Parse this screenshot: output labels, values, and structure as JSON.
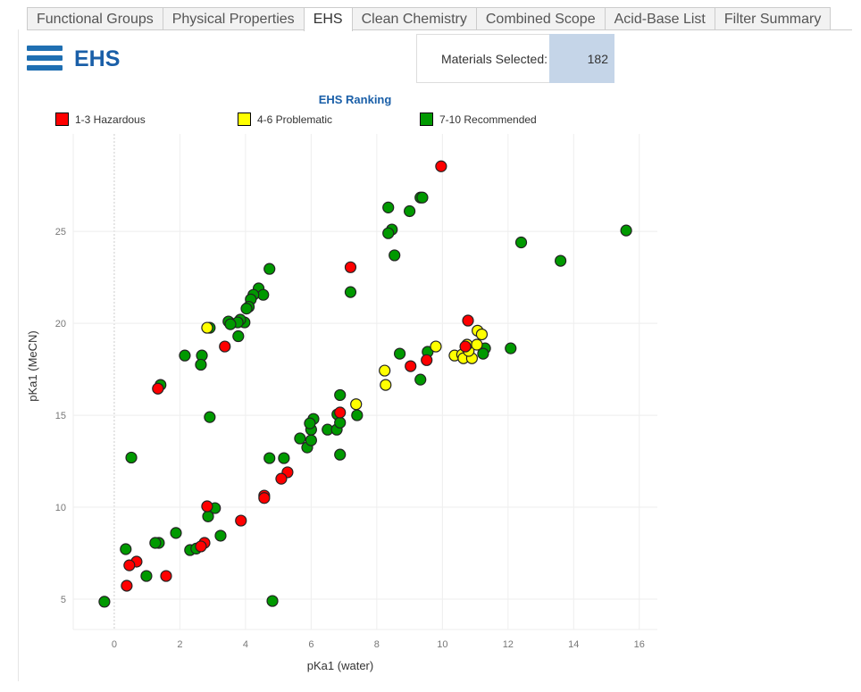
{
  "tabs": [
    "Functional Groups",
    "Physical Properties",
    "EHS",
    "Clean Chemistry",
    "Combined Scope",
    "Acid-Base List",
    "Filter Summary"
  ],
  "active_tab": "EHS",
  "header": {
    "title": "EHS",
    "materials_label": "Materials Selected:",
    "materials_value": "182"
  },
  "colors": {
    "accent": "#1a5fa8",
    "hazardous": "#ff0000",
    "problematic": "#ffff00",
    "recommended": "#009900"
  },
  "chart_data": {
    "type": "scatter",
    "legend_title": "EHS Ranking",
    "legend_position": "top",
    "xlabel": "pKa1 (water)",
    "ylabel": "pKa1 (MeCN)",
    "xlim": [
      -1.25,
      16.55
    ],
    "ylim": [
      3.35,
      30.3
    ],
    "xticks": [
      0,
      2,
      4,
      6,
      8,
      10,
      12,
      14,
      16
    ],
    "yticks": [
      5,
      10,
      15,
      20,
      25
    ],
    "grid": true,
    "series": [
      {
        "name": "1-3 Hazardous",
        "color": "#ff0000",
        "points": [
          [
            9.96,
            28.54
          ],
          [
            7.2,
            23.05
          ],
          [
            3.37,
            18.74
          ],
          [
            1.33,
            16.45
          ],
          [
            5.28,
            11.9
          ],
          [
            5.09,
            11.55
          ],
          [
            4.57,
            10.63
          ],
          [
            4.57,
            10.5
          ],
          [
            2.83,
            10.05
          ],
          [
            3.86,
            9.27
          ],
          [
            2.75,
            8.06
          ],
          [
            2.64,
            7.87
          ],
          [
            0.68,
            7.04
          ],
          [
            0.46,
            6.84
          ],
          [
            1.58,
            6.26
          ],
          [
            0.38,
            5.73
          ],
          [
            6.88,
            15.15
          ],
          [
            9.03,
            17.67
          ],
          [
            9.52,
            18.0
          ],
          [
            10.78,
            20.15
          ],
          [
            10.7,
            18.74
          ]
        ]
      },
      {
        "name": "4-6 Problematic",
        "color": "#ffff00",
        "points": [
          [
            2.83,
            19.76
          ],
          [
            7.37,
            15.6
          ],
          [
            8.24,
            17.43
          ],
          [
            8.27,
            16.65
          ],
          [
            9.8,
            18.74
          ],
          [
            11.07,
            19.6
          ],
          [
            11.2,
            19.4
          ],
          [
            10.37,
            18.25
          ],
          [
            10.6,
            18.3
          ],
          [
            10.64,
            18.1
          ],
          [
            10.9,
            18.1
          ],
          [
            10.8,
            18.5
          ],
          [
            10.75,
            18.84
          ],
          [
            11.05,
            18.84
          ]
        ]
      },
      {
        "name": "7-10 Recommended",
        "color": "#009900",
        "points": [
          [
            8.35,
            26.3
          ],
          [
            9.33,
            26.84
          ],
          [
            9.39,
            26.84
          ],
          [
            9.0,
            26.1
          ],
          [
            8.46,
            25.1
          ],
          [
            8.35,
            24.9
          ],
          [
            8.54,
            23.7
          ],
          [
            12.4,
            24.4
          ],
          [
            13.6,
            23.4
          ],
          [
            15.6,
            25.05
          ],
          [
            7.2,
            21.7
          ],
          [
            4.73,
            22.96
          ],
          [
            4.4,
            21.9
          ],
          [
            4.54,
            21.55
          ],
          [
            4.24,
            21.55
          ],
          [
            4.16,
            21.3
          ],
          [
            4.1,
            20.9
          ],
          [
            4.03,
            20.8
          ],
          [
            3.97,
            20.05
          ],
          [
            3.84,
            20.2
          ],
          [
            3.76,
            20.05
          ],
          [
            3.48,
            20.1
          ],
          [
            3.54,
            19.95
          ],
          [
            3.78,
            19.3
          ],
          [
            2.91,
            19.76
          ],
          [
            2.15,
            18.25
          ],
          [
            2.67,
            18.25
          ],
          [
            2.64,
            17.75
          ],
          [
            1.41,
            16.65
          ],
          [
            2.91,
            14.9
          ],
          [
            0.52,
            12.7
          ],
          [
            4.73,
            12.67
          ],
          [
            5.17,
            12.67
          ],
          [
            3.07,
            9.95
          ],
          [
            2.86,
            9.5
          ],
          [
            1.88,
            8.6
          ],
          [
            3.24,
            8.45
          ],
          [
            1.36,
            8.06
          ],
          [
            1.25,
            8.06
          ],
          [
            2.31,
            7.67
          ],
          [
            2.5,
            7.75
          ],
          [
            0.35,
            7.72
          ],
          [
            0.98,
            6.26
          ],
          [
            -0.3,
            4.86
          ],
          [
            4.82,
            4.9
          ],
          [
            5.66,
            13.74
          ],
          [
            5.88,
            13.25
          ],
          [
            6.0,
            13.64
          ],
          [
            6.0,
            14.22
          ],
          [
            6.07,
            14.8
          ],
          [
            5.96,
            14.56
          ],
          [
            6.5,
            14.22
          ],
          [
            6.78,
            14.22
          ],
          [
            6.8,
            15.05
          ],
          [
            6.88,
            14.6
          ],
          [
            6.88,
            12.86
          ],
          [
            6.88,
            16.1
          ],
          [
            7.4,
            15.0
          ],
          [
            8.7,
            18.35
          ],
          [
            9.33,
            16.94
          ],
          [
            9.55,
            18.45
          ],
          [
            11.3,
            18.64
          ],
          [
            11.24,
            18.35
          ],
          [
            12.08,
            18.64
          ]
        ]
      }
    ]
  }
}
